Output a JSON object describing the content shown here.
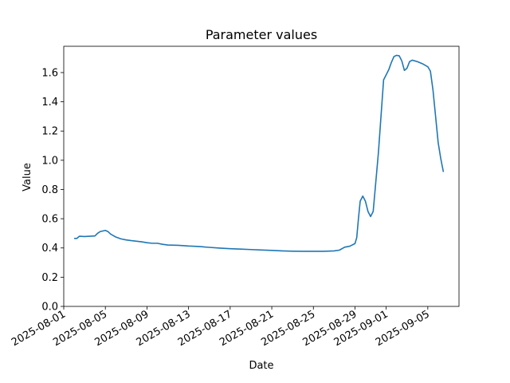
{
  "chart_data": {
    "type": "line",
    "title": "Parameter values",
    "xlabel": "Date",
    "ylabel": "Value",
    "xlim": [
      "2025-08-01",
      "2025-09-08"
    ],
    "ylim": [
      0.0,
      1.78
    ],
    "x_ticks": [
      "2025-08-01",
      "2025-08-05",
      "2025-08-09",
      "2025-08-13",
      "2025-08-17",
      "2025-08-21",
      "2025-08-25",
      "2025-08-29",
      "2025-09-01",
      "2025-09-05"
    ],
    "y_ticks": [
      "0.0",
      "0.2",
      "0.4",
      "0.6",
      "0.8",
      "1.0",
      "1.2",
      "1.4",
      "1.6"
    ],
    "grid": false,
    "series": [
      {
        "color": "#1f77b4",
        "points": [
          [
            "2025-08-02",
            0.465
          ],
          [
            "2025-08-02T06:00",
            0.465
          ],
          [
            "2025-08-02T12:00",
            0.48
          ],
          [
            "2025-08-03",
            0.478
          ],
          [
            "2025-08-03T12:00",
            0.48
          ],
          [
            "2025-08-04",
            0.482
          ],
          [
            "2025-08-04T06:00",
            0.5
          ],
          [
            "2025-08-04T12:00",
            0.512
          ],
          [
            "2025-08-05",
            0.52
          ],
          [
            "2025-08-05T06:00",
            0.512
          ],
          [
            "2025-08-05T12:00",
            0.495
          ],
          [
            "2025-08-06",
            0.475
          ],
          [
            "2025-08-06T12:00",
            0.462
          ],
          [
            "2025-08-07",
            0.455
          ],
          [
            "2025-08-07T12:00",
            0.45
          ],
          [
            "2025-08-08",
            0.446
          ],
          [
            "2025-08-08T12:00",
            0.442
          ],
          [
            "2025-08-09",
            0.436
          ],
          [
            "2025-08-09T12:00",
            0.432
          ],
          [
            "2025-08-10",
            0.432
          ],
          [
            "2025-08-10T12:00",
            0.425
          ],
          [
            "2025-08-11",
            0.42
          ],
          [
            "2025-08-12",
            0.418
          ],
          [
            "2025-08-13",
            0.413
          ],
          [
            "2025-08-14",
            0.41
          ],
          [
            "2025-08-15",
            0.404
          ],
          [
            "2025-08-16",
            0.399
          ],
          [
            "2025-08-17",
            0.395
          ],
          [
            "2025-08-18",
            0.392
          ],
          [
            "2025-08-19",
            0.389
          ],
          [
            "2025-08-20",
            0.386
          ],
          [
            "2025-08-21",
            0.383
          ],
          [
            "2025-08-22",
            0.38
          ],
          [
            "2025-08-23",
            0.378
          ],
          [
            "2025-08-24",
            0.377
          ],
          [
            "2025-08-25",
            0.377
          ],
          [
            "2025-08-26",
            0.377
          ],
          [
            "2025-08-27",
            0.38
          ],
          [
            "2025-08-27T12:00",
            0.385
          ],
          [
            "2025-08-28",
            0.405
          ],
          [
            "2025-08-28T12:00",
            0.412
          ],
          [
            "2025-08-29",
            0.43
          ],
          [
            "2025-08-29T04:00",
            0.47
          ],
          [
            "2025-08-29T08:00",
            0.6
          ],
          [
            "2025-08-29T12:00",
            0.72
          ],
          [
            "2025-08-29T18:00",
            0.755
          ],
          [
            "2025-08-30",
            0.72
          ],
          [
            "2025-08-30T06:00",
            0.65
          ],
          [
            "2025-08-30T12:00",
            0.615
          ],
          [
            "2025-08-30T18:00",
            0.65
          ],
          [
            "2025-08-31",
            0.85
          ],
          [
            "2025-08-31T06:00",
            1.05
          ],
          [
            "2025-08-31T12:00",
            1.3
          ],
          [
            "2025-08-31T18:00",
            1.55
          ],
          [
            "2025-09-01",
            1.585
          ],
          [
            "2025-09-01T06:00",
            1.62
          ],
          [
            "2025-09-01T12:00",
            1.67
          ],
          [
            "2025-09-01T18:00",
            1.71
          ],
          [
            "2025-09-02",
            1.718
          ],
          [
            "2025-09-02T06:00",
            1.715
          ],
          [
            "2025-09-02T12:00",
            1.68
          ],
          [
            "2025-09-02T18:00",
            1.615
          ],
          [
            "2025-09-03",
            1.63
          ],
          [
            "2025-09-03T06:00",
            1.675
          ],
          [
            "2025-09-03T12:00",
            1.685
          ],
          [
            "2025-09-03T18:00",
            1.68
          ],
          [
            "2025-09-04",
            1.675
          ],
          [
            "2025-09-04T12:00",
            1.66
          ],
          [
            "2025-09-05",
            1.64
          ],
          [
            "2025-09-05T06:00",
            1.61
          ],
          [
            "2025-09-05T12:00",
            1.48
          ],
          [
            "2025-09-05T18:00",
            1.3
          ],
          [
            "2025-09-06",
            1.12
          ],
          [
            "2025-09-06T06:00",
            1.01
          ],
          [
            "2025-09-06T12:00",
            0.92
          ]
        ]
      }
    ]
  }
}
